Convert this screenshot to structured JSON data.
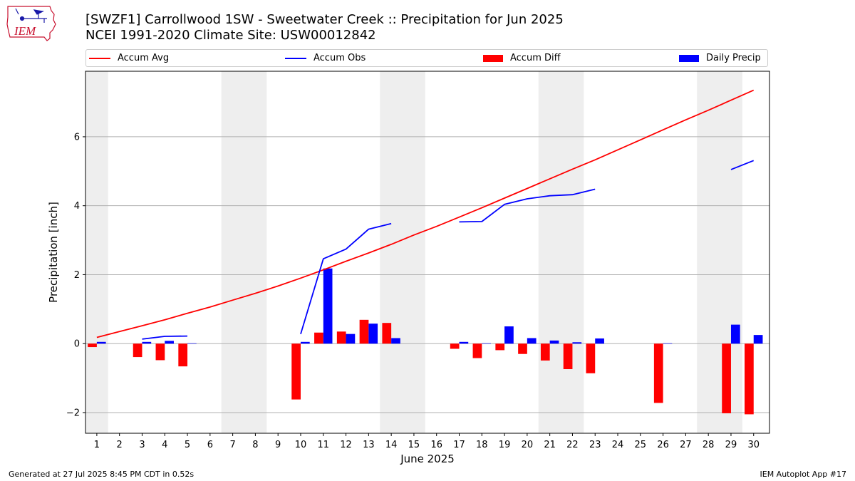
{
  "header": {
    "title_line1": "[SWZF1] Carrollwood 1SW - Sweetwater Creek :: Precipitation for Jun 2025",
    "title_line2": "NCEI 1991-2020 Climate Site: USW00012842",
    "logo_text": "IEM"
  },
  "footer": {
    "generated": "Generated at 27 Jul 2025 8:45 PM CDT in 0.52s",
    "app": "IEM Autoplot App #17"
  },
  "colors": {
    "accum_avg": "#ff0000",
    "accum_obs": "#0000ff",
    "accum_diff": "#ff0000",
    "daily_precip": "#0000ff",
    "weekend_shade": "#eeeeee",
    "grid": "#b0b0b0"
  },
  "chart_data": {
    "type": "bar",
    "xlabel": "June 2025",
    "ylabel": "Precipitation [inch]",
    "ylim": [
      -2.6,
      7.9
    ],
    "yticks": [
      -2,
      0,
      2,
      4,
      6
    ],
    "ytick_labels": [
      "−2",
      "0",
      "2",
      "4",
      "6"
    ],
    "grid": "horizontal",
    "legend_position": "top",
    "categories": [
      "1",
      "2",
      "3",
      "4",
      "5",
      "6",
      "7",
      "8",
      "9",
      "10",
      "11",
      "12",
      "13",
      "14",
      "15",
      "16",
      "17",
      "18",
      "19",
      "20",
      "21",
      "22",
      "23",
      "24",
      "25",
      "26",
      "27",
      "28",
      "29",
      "30"
    ],
    "weekend_days": [
      1,
      7,
      8,
      14,
      15,
      21,
      22,
      28,
      29
    ],
    "legend": [
      "Accum Avg",
      "Accum Obs",
      "Accum Diff",
      "Daily Precip"
    ],
    "series": [
      {
        "name": "Accum Avg",
        "kind": "line",
        "values": [
          0.18,
          0.35,
          0.52,
          0.69,
          0.88,
          1.06,
          1.26,
          1.46,
          1.67,
          1.9,
          2.14,
          2.39,
          2.63,
          2.88,
          3.15,
          3.4,
          3.67,
          3.94,
          4.22,
          4.5,
          4.78,
          5.06,
          5.33,
          5.62,
          5.91,
          6.2,
          6.49,
          6.77,
          7.06,
          7.35
        ]
      },
      {
        "name": "Accum Obs",
        "kind": "line",
        "values": [
          null,
          null,
          0.13,
          0.21,
          0.22,
          null,
          null,
          null,
          null,
          0.28,
          2.46,
          2.74,
          3.32,
          3.48,
          null,
          null,
          3.53,
          3.54,
          4.04,
          4.2,
          4.29,
          4.32,
          4.48,
          null,
          null,
          null,
          null,
          null,
          5.05,
          5.31
        ]
      },
      {
        "name": "Accum Diff",
        "kind": "bar",
        "values": [
          -0.1,
          null,
          -0.39,
          -0.48,
          -0.66,
          null,
          null,
          null,
          null,
          -1.62,
          0.32,
          0.35,
          0.69,
          0.6,
          null,
          null,
          -0.15,
          -0.42,
          -0.19,
          -0.3,
          -0.49,
          -0.74,
          -0.86,
          null,
          null,
          -1.72,
          null,
          null,
          -2.02,
          -2.05
        ]
      },
      {
        "name": "Daily Precip",
        "kind": "bar",
        "values": [
          0.05,
          null,
          0.05,
          0.08,
          0.01,
          null,
          null,
          null,
          null,
          0.05,
          2.18,
          0.28,
          0.58,
          0.16,
          null,
          null,
          0.05,
          0.01,
          0.5,
          0.16,
          0.09,
          0.04,
          0.15,
          null,
          null,
          0.01,
          null,
          null,
          0.55,
          0.25
        ]
      }
    ]
  }
}
